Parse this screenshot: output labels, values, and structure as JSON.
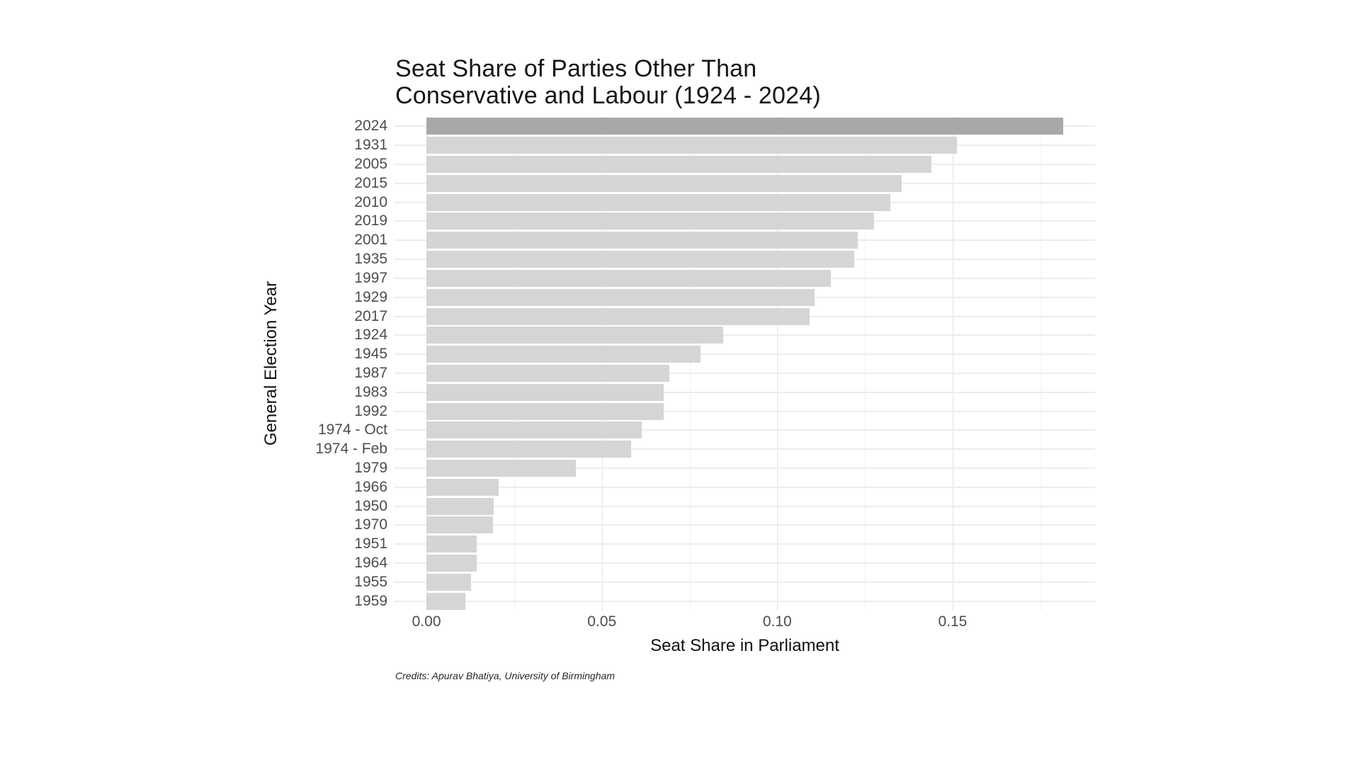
{
  "title": {
    "line1": "Seat Share of Parties Other Than",
    "line2": "Conservative and Labour (1924 - 2024)"
  },
  "credits": "Credits: Apurav Bhatiya, University of Birmingham",
  "chart_data": {
    "type": "bar",
    "orientation": "horizontal",
    "title": "Seat Share of Parties Other Than Conservative and Labour (1924 - 2024)",
    "xlabel": "Seat Share in Parliament",
    "ylabel": "General Election Year",
    "categories": [
      "2024",
      "1931",
      "2005",
      "2015",
      "2010",
      "2019",
      "2001",
      "1935",
      "1997",
      "1929",
      "2017",
      "1924",
      "1945",
      "1987",
      "1983",
      "1992",
      "1974 - Oct",
      "1974 - Feb",
      "1979",
      "1966",
      "1950",
      "1970",
      "1951",
      "1964",
      "1955",
      "1959"
    ],
    "values": [
      0.1815,
      0.1512,
      0.144,
      0.1354,
      0.1323,
      0.1277,
      0.1229,
      0.122,
      0.1153,
      0.1106,
      0.1092,
      0.0846,
      0.0781,
      0.0692,
      0.0677,
      0.0676,
      0.0614,
      0.0583,
      0.0425,
      0.0206,
      0.0192,
      0.019,
      0.0144,
      0.0143,
      0.0127,
      0.0111
    ],
    "highlight_category": "2024",
    "bar_color": "#d5d5d5",
    "highlight_color": "#a8a8a8",
    "xlim": [
      -0.0091,
      0.1906
    ],
    "xticks": [
      0,
      0.05,
      0.1,
      0.15
    ],
    "xtick_labels": [
      "0.00",
      "0.05",
      "0.10",
      "0.15"
    ],
    "minor_xticks": [
      0.025,
      0.075,
      0.125,
      0.175
    ],
    "grid": true,
    "legend": false,
    "sorted": "descending"
  }
}
